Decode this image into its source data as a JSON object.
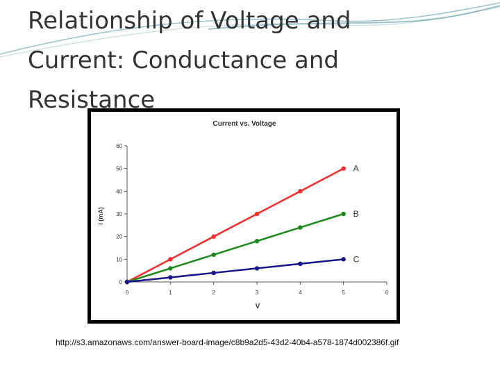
{
  "slide": {
    "title_lines": [
      "Relationship of Voltage and",
      "Current:  Conductance and",
      "Resistance"
    ],
    "source_url": "http://s3.amazonaws.com/answer-board-image/c8b9a2d5-43d2-40b4-a578-1874d002386f.gif"
  },
  "colors": {
    "series_A": "#ff2a2a",
    "series_B": "#1a8a1a",
    "series_C": "#15158f",
    "frame": "#000000",
    "title_text": "#333333",
    "accent_waves": "#7fb3bf"
  },
  "chart_data": {
    "type": "line",
    "title": "Current vs. Voltage",
    "xlabel": "V",
    "ylabel": "I (mA)",
    "xlim": [
      0,
      6
    ],
    "ylim": [
      0,
      60
    ],
    "xticks": [
      "0",
      "1",
      "2",
      "3",
      "4",
      "5",
      "6"
    ],
    "yticks": [
      "0",
      "10",
      "20",
      "30",
      "40",
      "50",
      "60"
    ],
    "grid": false,
    "legend": "end-of-line labels",
    "series": [
      {
        "name": "A",
        "x": [
          0,
          1,
          2,
          3,
          4,
          5
        ],
        "y": [
          0,
          10,
          20,
          30,
          40,
          50
        ]
      },
      {
        "name": "B",
        "x": [
          0,
          1,
          2,
          3,
          4,
          5
        ],
        "y": [
          0,
          6,
          12,
          18,
          24,
          30
        ]
      },
      {
        "name": "C",
        "x": [
          0,
          1,
          2,
          3,
          4,
          5
        ],
        "y": [
          0,
          2,
          4,
          6,
          8,
          10
        ]
      }
    ]
  }
}
